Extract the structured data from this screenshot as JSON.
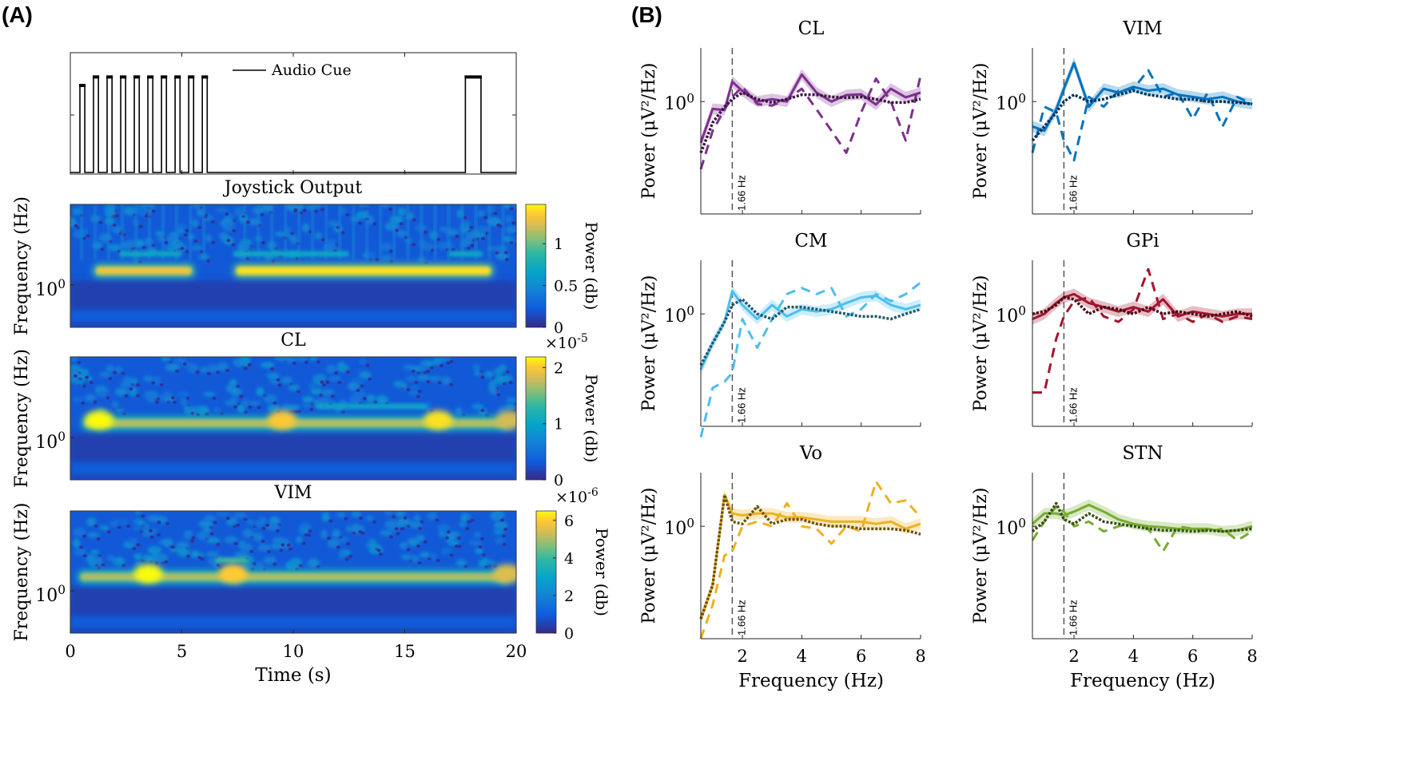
{
  "panel_a_label": "(A)",
  "panel_b_label": "(B)",
  "chart_data": [
    {
      "id": "audio",
      "type": "line",
      "legend": "Audio Cue",
      "xlim": [
        0,
        20
      ],
      "ylim": [
        0,
        1
      ],
      "pulses": [
        {
          "t": [
            0.43,
            0.65
          ],
          "level": 0.73
        },
        {
          "t": [
            1.04,
            1.26
          ],
          "level": 0.8
        },
        {
          "t": [
            1.65,
            1.87
          ],
          "level": 0.8
        },
        {
          "t": [
            2.26,
            2.48
          ],
          "level": 0.8
        },
        {
          "t": [
            2.87,
            3.09
          ],
          "level": 0.8
        },
        {
          "t": [
            3.48,
            3.7
          ],
          "level": 0.8
        },
        {
          "t": [
            4.09,
            4.31
          ],
          "level": 0.8
        },
        {
          "t": [
            4.7,
            4.92
          ],
          "level": 0.8
        },
        {
          "t": [
            5.31,
            5.53
          ],
          "level": 0.8
        },
        {
          "t": [
            5.92,
            6.14
          ],
          "level": 0.8
        },
        {
          "t": [
            17.72,
            18.42
          ],
          "level": 0.8
        }
      ]
    },
    {
      "id": "joystick",
      "type": "heatmap",
      "title": "Joystick Output",
      "ylabel": "Frequency (Hz)",
      "ytick": {
        "base": "10",
        "exp": "0"
      },
      "xlim": [
        0,
        20
      ],
      "colorbar": {
        "label": "Power (db)",
        "range": [
          0,
          1.47
        ],
        "ticks": [
          0,
          0.5,
          1
        ],
        "tick_labels": [
          "0",
          "0.5",
          "1"
        ],
        "multiplier": ""
      },
      "bands": [
        {
          "t": [
            1,
            5.6
          ],
          "level": 1.3
        },
        {
          "t": [
            7.3,
            19
          ],
          "level": 1.4
        }
      ],
      "harmonic_bands": [
        {
          "t": [
            2.2,
            5
          ],
          "level": 0.7
        },
        {
          "t": [
            7.3,
            12.5
          ],
          "level": 0.7
        },
        {
          "t": [
            17,
            18.5
          ],
          "level": 0.7
        }
      ],
      "hotspots": []
    },
    {
      "id": "cl",
      "type": "heatmap",
      "title": "CL",
      "ylabel": "Frequency (Hz)",
      "ytick": {
        "base": "10",
        "exp": "0"
      },
      "xlim": [
        0,
        20
      ],
      "colorbar": {
        "label": "Power (db)",
        "range": [
          0,
          2.19
        ],
        "ticks": [
          0,
          1,
          2
        ],
        "tick_labels": [
          "0",
          "1",
          "2"
        ],
        "multiplier": {
          "base": "×10",
          "exp": "-5"
        }
      },
      "bands": [
        {
          "t": [
            0.5,
            19.8
          ],
          "level": 1.7
        }
      ],
      "harmonic_bands": [
        {
          "t": [
            11,
            16
          ],
          "level": 1.0
        }
      ],
      "hotspots": [
        {
          "t": 1.3,
          "level": 2.2
        },
        {
          "t": 9.5,
          "level": 2.0
        },
        {
          "t": 16.5,
          "level": 2.1
        },
        {
          "t": 19.7,
          "level": 1.8
        }
      ]
    },
    {
      "id": "vim",
      "type": "heatmap",
      "title": "VIM",
      "ylabel": "Frequency (Hz)",
      "ytick": {
        "base": "10",
        "exp": "0"
      },
      "xlabel": "Time (s)",
      "xticks": [
        0,
        5,
        10,
        15,
        20
      ],
      "xlim": [
        0,
        20
      ],
      "colorbar": {
        "label": "Power (db)",
        "range": [
          0,
          6.5
        ],
        "ticks": [
          0,
          2,
          4,
          6
        ],
        "tick_labels": [
          "0",
          "2",
          "4",
          "6"
        ],
        "multiplier": {
          "base": "×10",
          "exp": "-6"
        }
      },
      "bands": [
        {
          "t": [
            0.3,
            19.8
          ],
          "level": 5.0
        }
      ],
      "harmonic_bands": [
        {
          "t": [
            6.5,
            8
          ],
          "level": 4.0
        }
      ],
      "hotspots": [
        {
          "t": 3.5,
          "level": 6.5
        },
        {
          "t": 7.3,
          "level": 6.0
        },
        {
          "t": 19.6,
          "level": 5.5
        }
      ]
    },
    {
      "id": "psd-cl",
      "type": "line",
      "title": "CL",
      "color": "#7E2F8E",
      "ylabel": "Power (μV²/Hz)",
      "xlabel": "Frequency (Hz)",
      "yscale": "log",
      "xlim": [
        0.6,
        8
      ],
      "ylim": [
        0.1,
        3
      ],
      "xticks": [
        2,
        4,
        6,
        8
      ],
      "ytick": {
        "base": "10",
        "exp": "0"
      },
      "marker_line": {
        "x": 1.66,
        "label": "1.66 Hz"
      },
      "x": [
        0.6,
        1,
        1.4,
        1.66,
        2,
        2.5,
        3,
        3.5,
        4,
        4.5,
        5,
        5.5,
        6,
        6.5,
        7,
        7.5,
        8
      ],
      "series": [
        {
          "style": "solid",
          "values": [
            0.43,
            0.86,
            0.84,
            1.5,
            1.24,
            1.0,
            1.05,
            1.0,
            1.74,
            1.2,
            1.0,
            1.14,
            1.16,
            0.94,
            1.3,
            1.09,
            1.2
          ]
        },
        {
          "style": "dashed",
          "values": [
            0.25,
            0.55,
            0.85,
            1.1,
            1.35,
            0.95,
            0.92,
            1.05,
            1.3,
            0.85,
            0.55,
            0.35,
            0.8,
            1.6,
            1.0,
            0.45,
            1.7
          ]
        },
        {
          "style": "dotted",
          "values": [
            0.35,
            0.65,
            0.9,
            1.05,
            1.2,
            1.05,
            0.98,
            1.05,
            1.15,
            1.15,
            1.1,
            1.08,
            1.1,
            1.05,
            0.98,
            0.98,
            1.05
          ]
        }
      ]
    },
    {
      "id": "psd-vim",
      "type": "line",
      "title": "VIM",
      "color": "#0072BD",
      "ylabel": "Power (μV²/Hz)",
      "xlabel": "Frequency (Hz)",
      "yscale": "log",
      "xlim": [
        0.6,
        8
      ],
      "ylim": [
        0.1,
        3
      ],
      "xticks": [
        2,
        4,
        6,
        8
      ],
      "ytick": {
        "base": "10",
        "exp": "0"
      },
      "marker_line": {
        "x": 1.66,
        "label": "1.66 Hz"
      },
      "x": [
        0.6,
        1,
        1.4,
        1.66,
        2,
        2.5,
        3,
        3.5,
        4,
        4.5,
        5,
        5.5,
        6,
        6.5,
        7,
        7.5,
        8
      ],
      "series": [
        {
          "style": "solid",
          "values": [
            0.6,
            0.55,
            0.85,
            1.3,
            2.2,
            0.9,
            1.3,
            1.2,
            1.35,
            1.25,
            1.3,
            1.15,
            1.1,
            1.05,
            1.1,
            1.0,
            0.95
          ]
        },
        {
          "style": "dashed",
          "values": [
            0.35,
            0.9,
            0.8,
            0.45,
            0.3,
            1.1,
            0.9,
            1.25,
            1.3,
            1.9,
            1.1,
            1.2,
            0.7,
            1.2,
            0.6,
            1.1,
            0.95
          ]
        },
        {
          "style": "dotted",
          "values": [
            0.45,
            0.6,
            0.8,
            1.0,
            1.15,
            1.0,
            1.05,
            1.15,
            1.25,
            1.15,
            1.1,
            1.05,
            1.05,
            1.0,
            1.0,
            0.98,
            0.95
          ]
        }
      ]
    },
    {
      "id": "psd-cm",
      "type": "line",
      "title": "CM",
      "color": "#4DBEEE",
      "ylabel": "Power (μV²/Hz)",
      "xlabel": "Frequency (Hz)",
      "yscale": "log",
      "xlim": [
        0.6,
        8
      ],
      "ylim": [
        0.1,
        3
      ],
      "xticks": [
        2,
        4,
        6,
        8
      ],
      "ytick": {
        "base": "10",
        "exp": "0"
      },
      "marker_line": {
        "x": 1.66,
        "label": "1.66 Hz"
      },
      "x": [
        0.6,
        1,
        1.4,
        1.66,
        2,
        2.5,
        3,
        3.5,
        4,
        4.5,
        5,
        5.5,
        6,
        6.5,
        7,
        7.5,
        8
      ],
      "series": [
        {
          "style": "solid",
          "values": [
            0.32,
            0.55,
            0.85,
            1.6,
            1.2,
            0.9,
            1.2,
            0.95,
            1.1,
            1.05,
            1.1,
            1.25,
            1.4,
            1.45,
            1.2,
            1.1,
            1.2
          ]
        },
        {
          "style": "dashed",
          "values": [
            0.08,
            0.22,
            0.25,
            0.3,
            0.9,
            0.5,
            0.9,
            1.5,
            1.7,
            1.5,
            1.7,
            0.95,
            1.1,
            1.5,
            1.3,
            1.5,
            1.9
          ]
        },
        {
          "style": "dotted",
          "values": [
            0.35,
            0.55,
            0.85,
            1.2,
            1.35,
            1.0,
            0.9,
            1.15,
            1.15,
            1.1,
            1.05,
            1.0,
            0.95,
            0.95,
            0.9,
            1.0,
            1.1
          ]
        }
      ]
    },
    {
      "id": "psd-gpi",
      "type": "line",
      "title": "GPi",
      "color": "#A2142F",
      "ylabel": "Power (μV²/Hz)",
      "xlabel": "Frequency (Hz)",
      "yscale": "log",
      "xlim": [
        0.6,
        8
      ],
      "ylim": [
        0.1,
        3
      ],
      "xticks": [
        2,
        4,
        6,
        8
      ],
      "ytick": {
        "base": "10",
        "exp": "0"
      },
      "marker_line": {
        "x": 1.66,
        "label": "1.66 Hz"
      },
      "x": [
        0.6,
        1,
        1.4,
        1.66,
        2,
        2.5,
        3,
        3.5,
        4,
        4.5,
        5,
        5.5,
        6,
        6.5,
        7,
        7.5,
        8
      ],
      "series": [
        {
          "style": "solid",
          "values": [
            0.9,
            1.0,
            1.25,
            1.4,
            1.5,
            1.25,
            1.15,
            1.05,
            1.15,
            1.05,
            1.35,
            0.95,
            1.05,
            1.0,
            0.95,
            1.0,
            1.0
          ]
        },
        {
          "style": "dashed",
          "values": [
            0.2,
            0.2,
            0.6,
            0.95,
            1.3,
            1.4,
            0.95,
            0.85,
            1.1,
            2.5,
            0.9,
            1.0,
            0.85,
            1.0,
            0.85,
            0.95,
            0.9
          ]
        },
        {
          "style": "dotted",
          "values": [
            1.0,
            1.05,
            1.2,
            1.4,
            1.35,
            1.0,
            1.15,
            1.1,
            1.0,
            1.15,
            1.0,
            1.05,
            1.0,
            0.95,
            1.0,
            1.05,
            0.95
          ]
        }
      ]
    },
    {
      "id": "psd-vo",
      "type": "line",
      "title": "Vo",
      "color": "#EDB120",
      "ylabel": "Power (μV²/Hz)",
      "xlabel": "Frequency (Hz)",
      "yscale": "log",
      "xlim": [
        0.6,
        8
      ],
      "ylim": [
        0.1,
        3
      ],
      "xticks": [
        2,
        4,
        6,
        8
      ],
      "ytick": {
        "base": "10",
        "exp": "0"
      },
      "marker_line": {
        "x": 1.66,
        "label": "1.66 Hz"
      },
      "x": [
        0.6,
        1,
        1.4,
        1.66,
        2,
        2.5,
        3,
        3.5,
        4,
        4.5,
        5,
        5.5,
        6,
        6.5,
        7,
        7.5,
        8
      ],
      "series": [
        {
          "style": "solid",
          "values": [
            0.15,
            0.3,
            1.9,
            1.3,
            1.25,
            1.3,
            1.3,
            1.2,
            1.2,
            1.15,
            1.1,
            1.1,
            1.1,
            1.05,
            1.1,
            0.95,
            1.05
          ]
        },
        {
          "style": "dashed",
          "values": [
            0.1,
            0.2,
            0.55,
            0.6,
            1.0,
            1.1,
            1.0,
            1.6,
            1.0,
            0.95,
            0.7,
            1.0,
            0.9,
            2.5,
            1.6,
            1.7,
            1.2
          ]
        },
        {
          "style": "dotted",
          "values": [
            0.15,
            0.3,
            1.9,
            1.1,
            1.05,
            1.5,
            1.05,
            1.15,
            1.15,
            1.05,
            1.0,
            1.0,
            0.95,
            0.95,
            0.95,
            0.92,
            0.85
          ]
        }
      ]
    },
    {
      "id": "psd-stn",
      "type": "line",
      "title": "STN",
      "color": "#77AC30",
      "ylabel": "Power (μV²/Hz)",
      "xlabel": "Frequency (Hz)",
      "yscale": "log",
      "xlim": [
        0.6,
        8
      ],
      "ylim": [
        0.1,
        3
      ],
      "xticks": [
        2,
        4,
        6,
        8
      ],
      "ytick": {
        "base": "10",
        "exp": "0"
      },
      "marker_line": {
        "x": 1.66,
        "label": "1.66 Hz"
      },
      "x": [
        0.6,
        1,
        1.4,
        1.66,
        2,
        2.5,
        3,
        3.5,
        4,
        4.5,
        5,
        5.5,
        6,
        6.5,
        7,
        7.5,
        8
      ],
      "series": [
        {
          "style": "solid",
          "values": [
            1.05,
            1.3,
            1.3,
            1.25,
            1.35,
            1.55,
            1.35,
            1.15,
            1.05,
            1.0,
            0.98,
            0.95,
            0.95,
            0.95,
            0.9,
            0.92,
            1.0
          ]
        },
        {
          "style": "dashed",
          "values": [
            0.75,
            1.1,
            1.5,
            1.35,
            1.0,
            1.1,
            0.9,
            1.0,
            1.05,
            0.95,
            0.6,
            1.0,
            0.95,
            0.9,
            0.95,
            0.75,
            0.9
          ]
        },
        {
          "style": "dotted",
          "values": [
            0.9,
            1.1,
            1.6,
            1.15,
            1.05,
            1.3,
            1.1,
            1.05,
            1.0,
            0.95,
            0.92,
            0.92,
            0.9,
            0.92,
            0.9,
            0.92,
            0.95
          ]
        }
      ]
    }
  ]
}
